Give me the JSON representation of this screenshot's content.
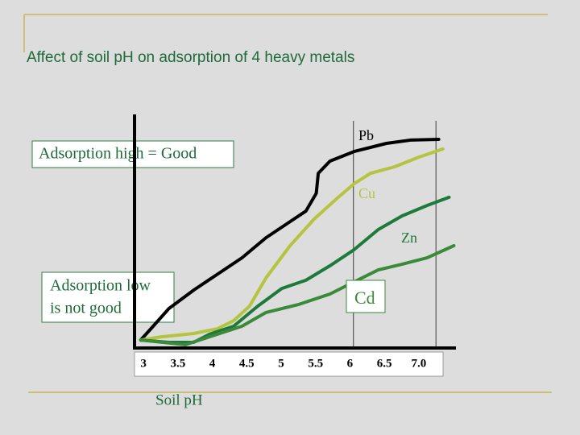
{
  "chart_data": {
    "type": "line",
    "title": "Affect of soil pH on adsorption of 4 heavy metals",
    "x_label": "Soil pH",
    "annotations": [
      "Adsorption high = Good",
      "Adsorption low",
      "is not good"
    ],
    "xlim": [
      2.87,
      7.54
    ],
    "ylim": [
      0,
      100
    ],
    "xticks": [
      3,
      3.5,
      4,
      4.5,
      5,
      5.5,
      6,
      6.5,
      {
        "value": 7,
        "label": "7.0"
      }
    ],
    "vlines": [
      6.05,
      7.25
    ],
    "series": [
      {
        "name": "Pb",
        "color": "#000000",
        "x": [
          2.96,
          3.14,
          3.37,
          3.73,
          4.08,
          4.43,
          4.78,
          5.13,
          5.36,
          5.51,
          5.54,
          5.71,
          6.06,
          6.53,
          6.88,
          7.29
        ],
        "values": [
          3.4,
          9.3,
          16.9,
          24.8,
          31.7,
          38.6,
          47.2,
          54.1,
          58.6,
          66.2,
          74.8,
          80,
          84.1,
          87.6,
          89,
          89.3
        ]
      },
      {
        "name": "Cu",
        "color": "#b5c440",
        "x": [
          2.96,
          3.26,
          3.73,
          4.08,
          4.31,
          4.54,
          4.78,
          5.13,
          5.48,
          5.83,
          6.06,
          6.3,
          6.65,
          7.0,
          7.35
        ],
        "values": [
          3.4,
          4.8,
          6.2,
          8.3,
          11.7,
          17.9,
          30,
          43.8,
          55.2,
          64.5,
          70.3,
          74.8,
          77.6,
          81.7,
          85.2
        ]
      },
      {
        "name": "Zn",
        "color": "#1e7a3a",
        "x": [
          2.96,
          3.37,
          3.73,
          3.96,
          4.31,
          4.66,
          5.01,
          5.36,
          5.71,
          6.06,
          6.41,
          6.76,
          7.12,
          7.44
        ],
        "values": [
          3.4,
          2.4,
          2.4,
          5.9,
          9.3,
          17.9,
          25.5,
          29,
          35.2,
          42.1,
          50.7,
          56.6,
          61,
          64.5
        ]
      },
      {
        "name": "Cd",
        "color": "#3a8a3a",
        "x": [
          2.96,
          3.61,
          3.96,
          4.43,
          4.78,
          5.25,
          5.71,
          6.06,
          6.41,
          6.76,
          7.12,
          7.51
        ],
        "values": [
          3.4,
          1.4,
          4.8,
          9.3,
          15.2,
          18.6,
          23.1,
          28.3,
          33.4,
          35.9,
          38.6,
          43.8
        ]
      }
    ]
  }
}
